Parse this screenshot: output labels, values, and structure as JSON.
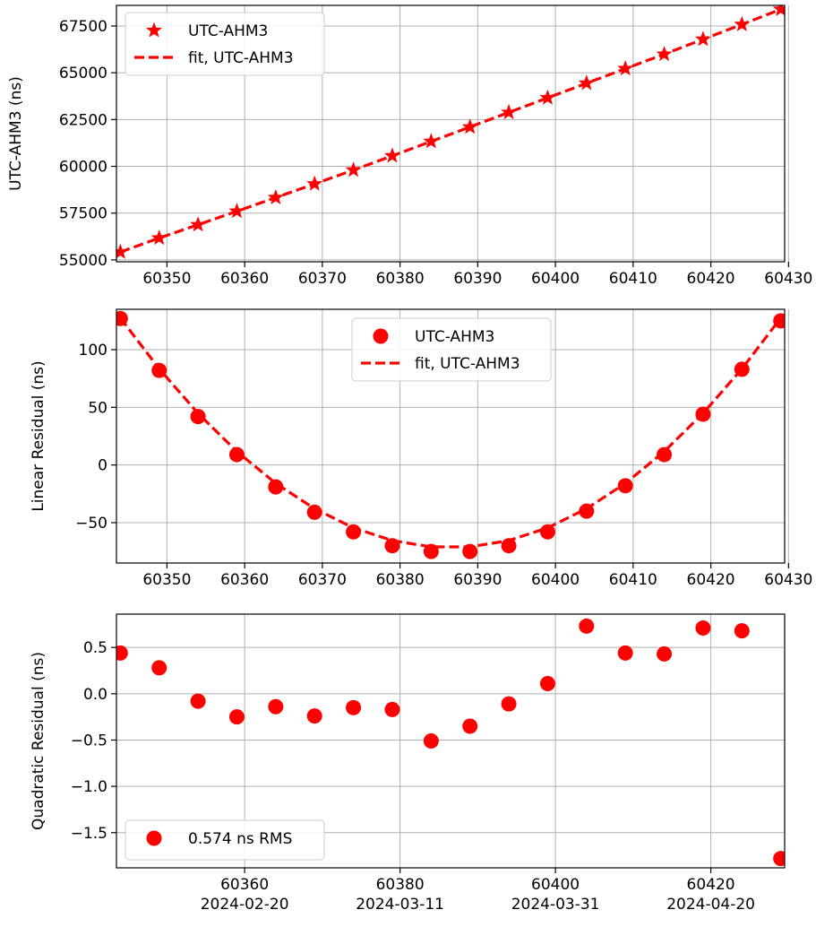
{
  "chart_data": [
    {
      "type": "line",
      "ylabel": "UTC-AHM3 (ns)",
      "xlim": [
        60343.5,
        60429.5
      ],
      "ylim": [
        54900,
        68600
      ],
      "xticks": [
        60350,
        60360,
        60370,
        60380,
        60390,
        60400,
        60410,
        60420,
        60430
      ],
      "xtick_labels": [
        "60350",
        "60360",
        "60370",
        "60380",
        "60390",
        "60400",
        "60410",
        "60420",
        "60430"
      ],
      "yticks": [
        55000,
        57500,
        60000,
        62500,
        65000,
        67500
      ],
      "ytick_labels": [
        "55000",
        "57500",
        "60000",
        "62500",
        "65000",
        "67500"
      ],
      "grid": true,
      "legend_placement": "top-left",
      "color": "#ff0000",
      "series": [
        {
          "name": "UTC-AHM3",
          "style": "star-markers",
          "x": [
            60344,
            60349,
            60354,
            60359,
            60364,
            60369,
            60374,
            60379,
            60384,
            60389,
            60394,
            60399,
            60404,
            60409,
            60414,
            60419,
            60424,
            60429
          ],
          "y": [
            55420,
            56170,
            56880,
            57600,
            58330,
            59060,
            59800,
            60560,
            61330,
            62100,
            62880,
            63660,
            64440,
            65220,
            65990,
            66790,
            67580,
            68390
          ]
        },
        {
          "name": "fit, UTC-AHM3",
          "style": "dashed-line",
          "x": [
            60344,
            60349,
            60354,
            60359,
            60364,
            60369,
            60374,
            60379,
            60384,
            60389,
            60394,
            60399,
            60404,
            60409,
            60414,
            60419,
            60424,
            60429
          ],
          "y": [
            55420,
            56170,
            56880,
            57600,
            58330,
            59060,
            59800,
            60560,
            61330,
            62100,
            62880,
            63660,
            64440,
            65220,
            65990,
            66790,
            67580,
            68390
          ]
        }
      ]
    },
    {
      "type": "line",
      "ylabel": "Linear Residual (ns)",
      "xlim": [
        60343.5,
        60429.5
      ],
      "ylim": [
        -85,
        135
      ],
      "xticks": [
        60350,
        60360,
        60370,
        60380,
        60390,
        60400,
        60410,
        60420,
        60430
      ],
      "xtick_labels": [
        "60350",
        "60360",
        "60370",
        "60380",
        "60390",
        "60400",
        "60410",
        "60420",
        "60430"
      ],
      "yticks": [
        -50,
        0,
        50,
        100
      ],
      "ytick_labels": [
        "−50",
        "0",
        "50",
        "100"
      ],
      "grid": true,
      "legend_placement": "top-center",
      "color": "#ff0000",
      "series": [
        {
          "name": "UTC-AHM3",
          "style": "circle-markers",
          "x": [
            60344,
            60349,
            60354,
            60359,
            60364,
            60369,
            60374,
            60379,
            60384,
            60389,
            60394,
            60399,
            60404,
            60409,
            60414,
            60419,
            60424,
            60429
          ],
          "y": [
            127,
            82,
            42,
            9,
            -19,
            -41,
            -58,
            -70,
            -75,
            -75,
            -70,
            -58,
            -40,
            -18,
            9,
            44,
            83,
            125
          ]
        },
        {
          "name": "fit, UTC-AHM3",
          "style": "dashed-line",
          "x": [
            60344,
            60349,
            60354,
            60359,
            60364,
            60369,
            60374,
            60379,
            60384,
            60389,
            60394,
            60399,
            60404,
            60409,
            60414,
            60419,
            60424,
            60429
          ],
          "y": [
            127.5,
            83.4,
            44.8,
            11.7,
            -15.9,
            -37.9,
            -54.5,
            -65.5,
            -71.0,
            -71.0,
            -65.5,
            -54.5,
            -37.9,
            -15.9,
            11.7,
            44.8,
            83.4,
            127.5
          ]
        }
      ]
    },
    {
      "type": "scatter",
      "ylabel": "Quadratic Residual (ns)",
      "xlim": [
        60343.5,
        60429.5
      ],
      "ylim": [
        -1.88,
        0.86
      ],
      "xticks": [
        60360,
        60380,
        60400,
        60420
      ],
      "xtick_labels": [
        "60360",
        "60380",
        "60400",
        "60420"
      ],
      "xtick_labels_2": [
        "2024-02-20",
        "2024-03-11",
        "2024-03-31",
        "2024-04-20"
      ],
      "yticks": [
        -1.5,
        -1.0,
        -0.5,
        0.0,
        0.5
      ],
      "ytick_labels": [
        "−1.5",
        "−1.0",
        "−0.5",
        "0.0",
        "0.5"
      ],
      "grid": true,
      "legend_placement": "bottom-left",
      "color": "#ff0000",
      "series": [
        {
          "name": "0.574 ns RMS",
          "style": "circle-markers",
          "x": [
            60344,
            60349,
            60354,
            60359,
            60364,
            60369,
            60374,
            60379,
            60384,
            60389,
            60394,
            60399,
            60404,
            60409,
            60414,
            60419,
            60424,
            60429
          ],
          "y": [
            0.44,
            0.28,
            -0.08,
            -0.25,
            -0.14,
            -0.24,
            -0.15,
            -0.17,
            -0.51,
            -0.35,
            -0.11,
            0.11,
            0.73,
            0.44,
            0.43,
            0.71,
            0.68,
            -1.78
          ]
        }
      ]
    }
  ]
}
